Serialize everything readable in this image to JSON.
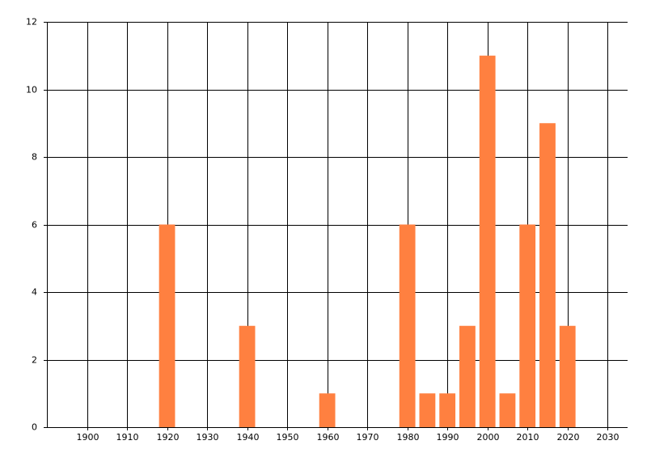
{
  "chart_data": {
    "type": "bar",
    "x": [
      1920,
      1940,
      1960,
      1980,
      1985,
      1990,
      1995,
      2000,
      2005,
      2010,
      2015,
      2020
    ],
    "values": [
      6,
      3,
      1,
      6,
      1,
      1,
      3,
      11,
      1,
      6,
      9,
      3
    ],
    "color": "#ff8040",
    "xlim": [
      1890,
      2035
    ],
    "xticks": [
      1900,
      1910,
      1920,
      1930,
      1940,
      1950,
      1960,
      1970,
      1980,
      1990,
      2000,
      2010,
      2020,
      2030
    ],
    "ylim": [
      0,
      12
    ],
    "yticks": [
      0,
      2,
      4,
      6,
      8,
      10,
      12
    ],
    "grid": true
  }
}
